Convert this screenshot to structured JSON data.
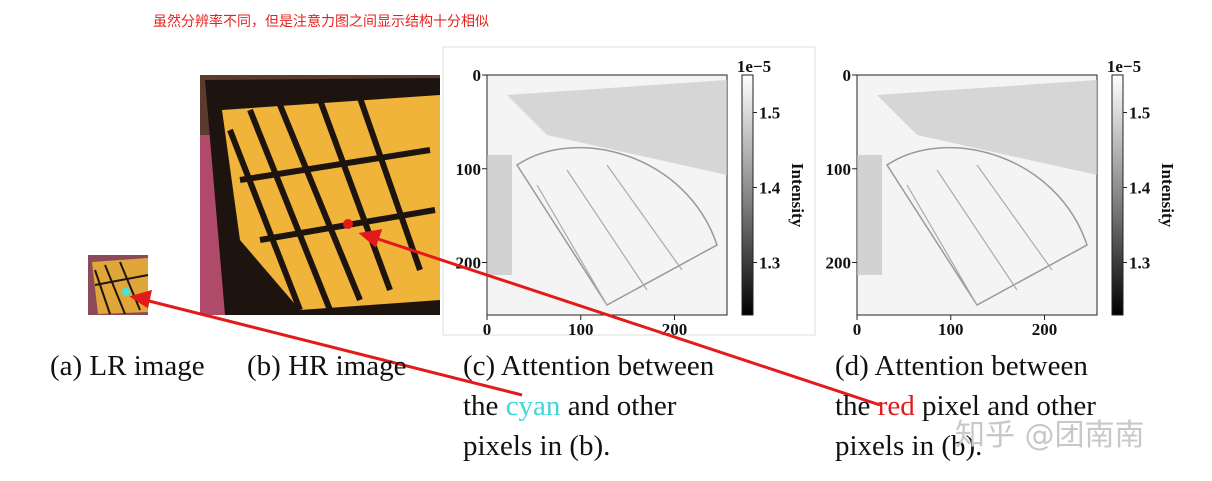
{
  "annotation": "虽然分辨率不同，但是注意力图之间显示结构十分相似",
  "panels": {
    "a": {
      "caption": "(a) LR image"
    },
    "b": {
      "caption": "(b) HR image"
    },
    "c": {
      "line1": "(c) Attention between",
      "pre": "the",
      "highlight": "cyan",
      "post": "and other",
      "line3": "pixels in (b)."
    },
    "d": {
      "line1": "(d) Attention between",
      "pre": "the",
      "highlight": "red",
      "post": "pixel and other",
      "line3": "pixels in (b)."
    }
  },
  "heatmap_axes": {
    "xlim": [
      0,
      256
    ],
    "ylim": [
      0,
      256
    ],
    "xticks": [
      0,
      100,
      200
    ],
    "yticks": [
      0,
      100,
      200
    ],
    "clim": [
      1.23,
      1.55
    ],
    "cticks": [
      1.3,
      1.4,
      1.5
    ],
    "scale": "1e−5",
    "colorbar_label": "Intensity"
  },
  "watermark": "知乎 @团南南"
}
